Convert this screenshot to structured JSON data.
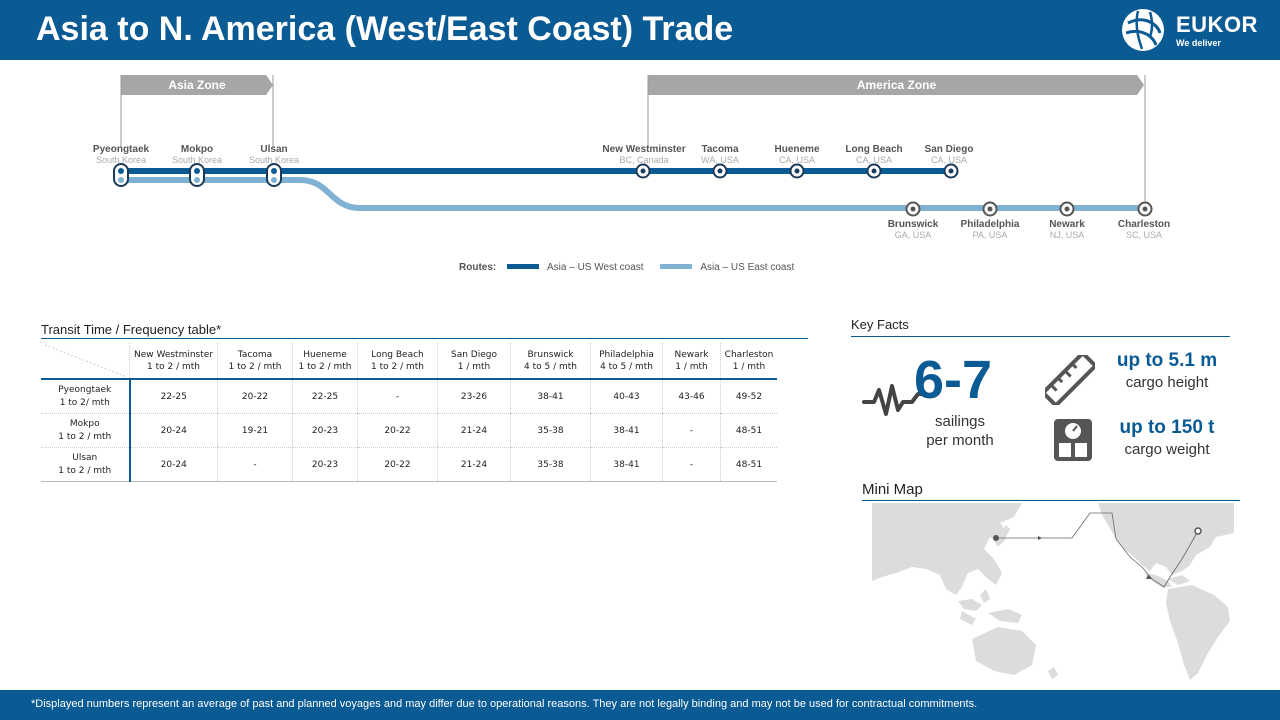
{
  "header": {
    "title": "Asia to N. America (West/East Coast) Trade",
    "logo_name": "EUKOR",
    "logo_tagline": "We deliver"
  },
  "zones": {
    "asia": "Asia Zone",
    "america": "America Zone"
  },
  "ports_top": [
    {
      "name": "Pyeongtaek",
      "region": "South Korea"
    },
    {
      "name": "Mokpo",
      "region": "South Korea"
    },
    {
      "name": "Ulsan",
      "region": "South Korea"
    },
    {
      "name": "New Westminster",
      "region": "BC, Canada"
    },
    {
      "name": "Tacoma",
      "region": "WA, USA"
    },
    {
      "name": "Hueneme",
      "region": "CA, USA"
    },
    {
      "name": "Long Beach",
      "region": "CA, USA"
    },
    {
      "name": "San Diego",
      "region": "CA, USA"
    }
  ],
  "ports_bottom": [
    {
      "name": "Brunswick",
      "region": "GA, USA"
    },
    {
      "name": "Philadelphia",
      "region": "PA, USA"
    },
    {
      "name": "Newark",
      "region": "NJ, USA"
    },
    {
      "name": "Charleston",
      "region": "SC, USA"
    }
  ],
  "legend": {
    "label": "Routes:",
    "west": "Asia – US West coast",
    "east": "Asia – US East coast"
  },
  "colors": {
    "primary": "#0a5a94",
    "east_route": "#7fb1d2",
    "zone_gray": "#a6a6a6",
    "map_land": "#dcdcdc"
  },
  "transit": {
    "title": "Transit Time / Frequency table*",
    "columns": [
      {
        "name": "New Westminster",
        "freq": "1 to 2 / mth"
      },
      {
        "name": "Tacoma",
        "freq": "1 to 2 / mth"
      },
      {
        "name": "Hueneme",
        "freq": "1 to 2 / mth"
      },
      {
        "name": "Long Beach",
        "freq": "1 to 2 / mth"
      },
      {
        "name": "San Diego",
        "freq": "1 / mth"
      },
      {
        "name": "Brunswick",
        "freq": "4 to 5 / mth"
      },
      {
        "name": "Philadelphia",
        "freq": "4 to 5 / mth"
      },
      {
        "name": "Newark",
        "freq": "1 / mth"
      },
      {
        "name": "Charleston",
        "freq": "1 / mth"
      }
    ],
    "rows": [
      {
        "name": "Pyeongtaek",
        "freq": "1 to 2/ mth",
        "values": [
          "22-25",
          "20-22",
          "22-25",
          "-",
          "23-26",
          "38-41",
          "40-43",
          "43-46",
          "49-52"
        ]
      },
      {
        "name": "Mokpo",
        "freq": "1 to 2 / mth",
        "values": [
          "20-24",
          "19-21",
          "20-23",
          "20-22",
          "21-24",
          "35-38",
          "38-41",
          "-",
          "48-51"
        ]
      },
      {
        "name": "Ulsan",
        "freq": "1 to 2 / mth",
        "values": [
          "20-24",
          "-",
          "20-23",
          "20-22",
          "21-24",
          "35-38",
          "38-41",
          "-",
          "48-51"
        ]
      }
    ]
  },
  "key_facts": {
    "title": "Key Facts",
    "sailings_value": "6-7",
    "sailings_line1": "sailings",
    "sailings_line2": "per month",
    "height_value": "up to 5.1 m",
    "height_label": "cargo height",
    "weight_value": "up to 150 t",
    "weight_label": "cargo weight",
    "icons": [
      "heartbeat-icon",
      "ruler-icon",
      "scale-icon"
    ]
  },
  "mini_map": {
    "title": "Mini Map"
  },
  "footnote": "*Displayed numbers represent  an average of past and planned voyages and may differ due to operational reasons. They are not legally binding and may not be used for contractual commitments."
}
